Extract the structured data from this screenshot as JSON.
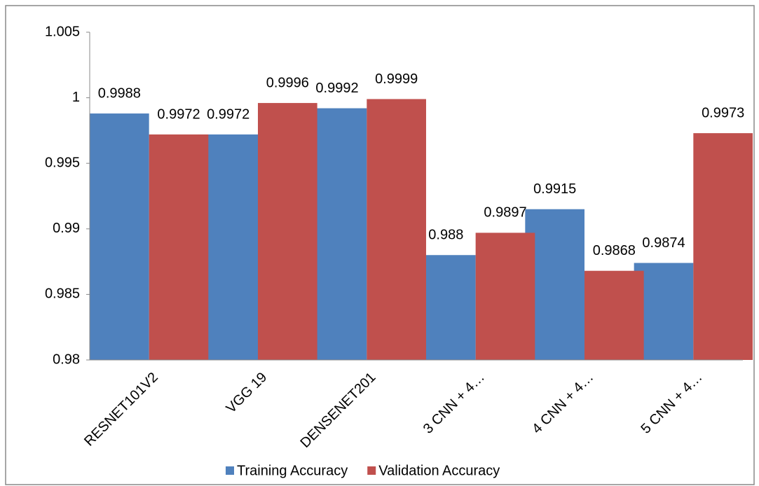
{
  "chart_data": {
    "type": "bar",
    "categories": [
      "RESNET101V2",
      "VGG 19",
      "DENSENET201",
      "3 CNN + 4…",
      "4 CNN + 4…",
      "5 CNN + 4…"
    ],
    "series": [
      {
        "name": "Training Accuracy",
        "color": "#4f81bd",
        "values": [
          0.9988,
          0.9972,
          0.9992,
          0.988,
          0.9915,
          0.9874
        ]
      },
      {
        "name": "Validation Accuracy",
        "color": "#c0504d",
        "values": [
          0.9972,
          0.9996,
          0.9999,
          0.9897,
          0.9868,
          0.9973
        ]
      }
    ],
    "ylim": [
      0.98,
      1.005
    ],
    "yticks": [
      0.98,
      0.985,
      0.99,
      0.995,
      1,
      1.005
    ],
    "grid": false,
    "legend": "bottom"
  }
}
